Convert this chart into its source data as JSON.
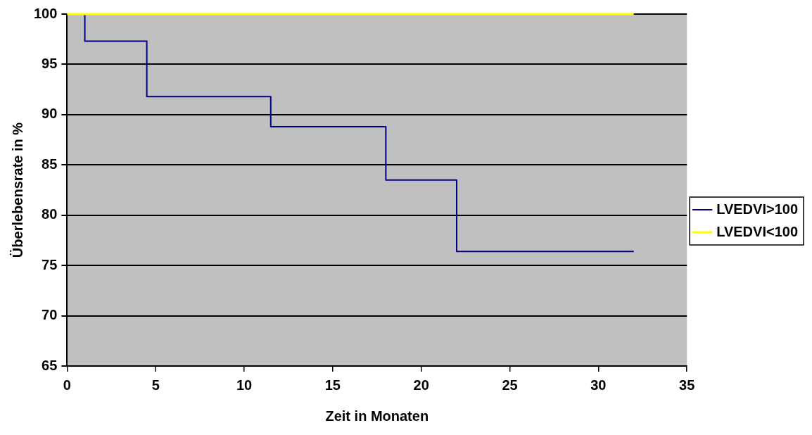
{
  "chart_data": {
    "type": "step",
    "xlabel": "Zeit in Monaten",
    "ylabel": "Überlebensrate in %",
    "xlim": [
      0,
      35
    ],
    "xticks": [
      0,
      5,
      10,
      15,
      20,
      25,
      30,
      35
    ],
    "ylim": [
      65,
      100
    ],
    "yticks": [
      65,
      70,
      75,
      80,
      85,
      90,
      95,
      100
    ],
    "grid": "y",
    "legend": "right",
    "series": [
      {
        "name": "LVEDVI>100",
        "color": "#000080",
        "x": [
          0,
          1,
          4.5,
          11.5,
          18,
          22,
          32
        ],
        "values": [
          100,
          97.3,
          91.8,
          88.8,
          83.5,
          76.4,
          76.4
        ]
      },
      {
        "name": "LVEDVI<100",
        "color": "#ffff00",
        "x": [
          0,
          32
        ],
        "values": [
          100,
          100
        ]
      }
    ]
  }
}
